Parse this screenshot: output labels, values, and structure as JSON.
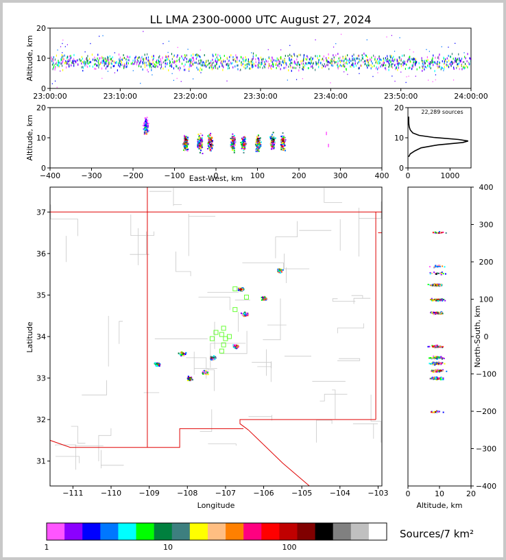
{
  "chart_data": [
    {
      "type": "scatter",
      "panel": "altitude-time",
      "title": "LL LMA 2300-0000 UTC August 27, 2024",
      "ylabel": "Altitude, km",
      "xticks": [
        "23:00:00",
        "23:10:00",
        "23:20:00",
        "23:30:00",
        "23:40:00",
        "23:50:00",
        "24:00:00"
      ],
      "yticks": [
        "0",
        "10",
        "20"
      ],
      "ylim": [
        0,
        20
      ],
      "note": "dense source band between 5 and 13 km throughout the hour"
    },
    {
      "type": "scatter",
      "panel": "altitude-eastwest",
      "xlabel": "East-West, km",
      "ylabel": "Altitude, km",
      "xticks": [
        "−400",
        "−300",
        "−200",
        "−100",
        "0",
        "100",
        "200",
        "300",
        "400"
      ],
      "yticks": [
        "0",
        "10",
        "20"
      ],
      "xlim": [
        -400,
        400
      ],
      "ylim": [
        0,
        20
      ],
      "clusters_x": [
        -170,
        -75,
        -40,
        -15,
        40,
        65,
        100,
        135,
        160
      ]
    },
    {
      "type": "line",
      "panel": "altitude-histogram",
      "annotation": "22,289 sources",
      "xticks": [
        "0",
        "1000"
      ],
      "yticks": [
        "0",
        "10",
        "20"
      ],
      "xlim": [
        0,
        1500
      ],
      "ylim": [
        0,
        20
      ],
      "points": [
        [
          0,
          3.5
        ],
        [
          40,
          4.5
        ],
        [
          150,
          5.5
        ],
        [
          300,
          6.5
        ],
        [
          700,
          7.5
        ],
        [
          1300,
          8.3
        ],
        [
          1430,
          8.8
        ],
        [
          1200,
          9.3
        ],
        [
          600,
          10
        ],
        [
          250,
          10.7
        ],
        [
          100,
          11.5
        ],
        [
          40,
          12.5
        ],
        [
          15,
          13.5
        ],
        [
          5,
          14.5
        ],
        [
          2,
          15.5
        ],
        [
          0,
          17
        ]
      ]
    },
    {
      "type": "scatter",
      "panel": "plan-view-map",
      "xlabel": "Longitude",
      "ylabel": "Latitude",
      "xticks": [
        "−111",
        "−110",
        "−109",
        "−108",
        "−107",
        "−106",
        "−105",
        "−104",
        "−103"
      ],
      "yticks": [
        "31",
        "32",
        "33",
        "34",
        "35",
        "36",
        "37"
      ],
      "xlim": [
        -111.6,
        -102.9
      ],
      "ylim": [
        30.4,
        37.6
      ],
      "source_clusters": [
        {
          "lon": -108.8,
          "lat": 33.35
        },
        {
          "lon": -107.95,
          "lat": 33.0
        },
        {
          "lon": -107.35,
          "lat": 33.5
        },
        {
          "lon": -107.55,
          "lat": 33.15
        },
        {
          "lon": -106.0,
          "lat": 34.93
        },
        {
          "lon": -106.6,
          "lat": 35.15
        },
        {
          "lon": -106.5,
          "lat": 34.55
        },
        {
          "lon": -105.6,
          "lat": 35.6
        },
        {
          "lon": -108.15,
          "lat": 33.6
        },
        {
          "lon": -106.75,
          "lat": 33.78
        }
      ],
      "stations": [
        [
          -107.25,
          34.1
        ],
        [
          -107.05,
          34.2
        ],
        [
          -107.1,
          34.05
        ],
        [
          -106.9,
          34.0
        ],
        [
          -107.0,
          33.95
        ],
        [
          -107.35,
          33.95
        ],
        [
          -107.05,
          33.8
        ],
        [
          -106.75,
          35.15
        ],
        [
          -106.45,
          34.95
        ],
        [
          -106.75,
          34.65
        ],
        [
          -107.1,
          33.65
        ]
      ]
    },
    {
      "type": "scatter",
      "panel": "northsouth-altitude",
      "xlabel": "Altitude, km",
      "ylabel": "North-South, km",
      "xticks": [
        "0",
        "10",
        "20"
      ],
      "yticks": [
        "−400",
        "−300",
        "−200",
        "−100",
        "0",
        "100",
        "200",
        "300",
        "400"
      ],
      "xlim": [
        0,
        20
      ],
      "ylim": [
        -400,
        400
      ],
      "clusters_y": [
        190,
        170,
        140,
        100,
        65,
        -25,
        -55,
        -70,
        -90,
        -110,
        -200,
        280
      ]
    }
  ],
  "colorbar": {
    "title": "Sources/7 km²",
    "ticks": [
      "1",
      "10",
      "100"
    ],
    "colors": [
      "#ff55ff",
      "#8b00ff",
      "#0000ff",
      "#0077ff",
      "#00ffff",
      "#00ff00",
      "#00803e",
      "#3d7f7f",
      "#ffff00",
      "#ffbe82",
      "#ff8000",
      "#ff0080",
      "#ff0000",
      "#c00000",
      "#800000",
      "#000000",
      "#808080",
      "#c0c0c0",
      "#ffffff"
    ]
  }
}
